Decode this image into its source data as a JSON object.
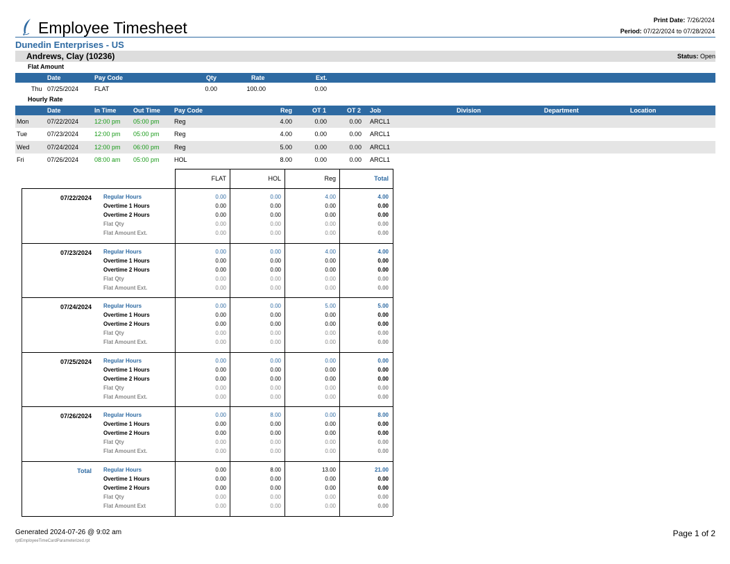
{
  "header": {
    "title": "Employee Timesheet",
    "print_date_label": "Print Date:",
    "print_date_value": "7/26/2024",
    "period_label": "Period:",
    "period_value": "07/22/2024 to 07/28/2024",
    "logo_icon": "feather-icon"
  },
  "company": "Dunedin Enterprises - US",
  "employee": {
    "name": "Andrews, Clay (10236)",
    "status_label": "Status:",
    "status_value": "Open"
  },
  "flat_amount": {
    "title": "Flat Amount",
    "headers": {
      "date": "Date",
      "pay_code": "Pay Code",
      "qty": "Qty",
      "rate": "Rate",
      "ext": "Ext."
    },
    "rows": [
      {
        "day": "Thu",
        "date": "07/25/2024",
        "pay_code": "FLAT",
        "qty": "0.00",
        "rate": "100.00",
        "ext": "0.00"
      }
    ]
  },
  "hourly_rate": {
    "title": "Hourly Rate",
    "headers": {
      "date": "Date",
      "in_time": "In Time",
      "out_time": "Out Time",
      "pay_code": "Pay Code",
      "reg": "Reg",
      "ot1": "OT 1",
      "ot2": "OT 2",
      "job": "Job",
      "division": "Division",
      "department": "Department",
      "location": "Location"
    },
    "rows": [
      {
        "day": "Mon",
        "date": "07/22/2024",
        "in_time": "12:00 pm",
        "out_time": "05:00 pm",
        "pay_code": "Reg",
        "reg": "4.00",
        "ot1": "0.00",
        "ot2": "0.00",
        "job": "ARCL1"
      },
      {
        "day": "Tue",
        "date": "07/23/2024",
        "in_time": "12:00 pm",
        "out_time": "05:00 pm",
        "pay_code": "Reg",
        "reg": "4.00",
        "ot1": "0.00",
        "ot2": "0.00",
        "job": "ARCL1"
      },
      {
        "day": "Wed",
        "date": "07/24/2024",
        "in_time": "12:00 pm",
        "out_time": "06:00 pm",
        "pay_code": "Reg",
        "reg": "5.00",
        "ot1": "0.00",
        "ot2": "0.00",
        "job": "ARCL1"
      },
      {
        "day": "Fri",
        "date": "07/26/2024",
        "in_time": "08:00 am",
        "out_time": "05:00 pm",
        "pay_code": "HOL",
        "reg": "8.00",
        "ot1": "0.00",
        "ot2": "0.00",
        "job": "ARCL1"
      }
    ]
  },
  "summary": {
    "columns": [
      "FLAT",
      "HOL",
      "Reg",
      "Total"
    ],
    "blocks": [
      {
        "label": "07/22/2024",
        "lines": [
          {
            "name": "Regular Hours",
            "values": [
              "0.00",
              "0.00",
              "4.00",
              "4.00"
            ]
          },
          {
            "name": "Overtime 1 Hours",
            "values": [
              "0.00",
              "0.00",
              "0.00",
              "0.00"
            ]
          },
          {
            "name": "Overtime 2 Hours",
            "values": [
              "0.00",
              "0.00",
              "0.00",
              "0.00"
            ]
          },
          {
            "name": "Flat Qty",
            "values": [
              "0.00",
              "0.00",
              "0.00",
              "0.00"
            ]
          },
          {
            "name": "Flat Amount Ext.",
            "values": [
              "0.00",
              "0.00",
              "0.00",
              "0.00"
            ]
          }
        ]
      },
      {
        "label": "07/23/2024",
        "lines": [
          {
            "name": "Regular Hours",
            "values": [
              "0.00",
              "0.00",
              "4.00",
              "4.00"
            ]
          },
          {
            "name": "Overtime 1 Hours",
            "values": [
              "0.00",
              "0.00",
              "0.00",
              "0.00"
            ]
          },
          {
            "name": "Overtime 2 Hours",
            "values": [
              "0.00",
              "0.00",
              "0.00",
              "0.00"
            ]
          },
          {
            "name": "Flat Qty",
            "values": [
              "0.00",
              "0.00",
              "0.00",
              "0.00"
            ]
          },
          {
            "name": "Flat Amount Ext.",
            "values": [
              "0.00",
              "0.00",
              "0.00",
              "0.00"
            ]
          }
        ]
      },
      {
        "label": "07/24/2024",
        "lines": [
          {
            "name": "Regular Hours",
            "values": [
              "0.00",
              "0.00",
              "5.00",
              "5.00"
            ]
          },
          {
            "name": "Overtime 1 Hours",
            "values": [
              "0.00",
              "0.00",
              "0.00",
              "0.00"
            ]
          },
          {
            "name": "Overtime 2 Hours",
            "values": [
              "0.00",
              "0.00",
              "0.00",
              "0.00"
            ]
          },
          {
            "name": "Flat Qty",
            "values": [
              "0.00",
              "0.00",
              "0.00",
              "0.00"
            ]
          },
          {
            "name": "Flat Amount Ext.",
            "values": [
              "0.00",
              "0.00",
              "0.00",
              "0.00"
            ]
          }
        ]
      },
      {
        "label": "07/25/2024",
        "lines": [
          {
            "name": "Regular Hours",
            "values": [
              "0.00",
              "0.00",
              "0.00",
              "0.00"
            ]
          },
          {
            "name": "Overtime 1 Hours",
            "values": [
              "0.00",
              "0.00",
              "0.00",
              "0.00"
            ]
          },
          {
            "name": "Overtime 2 Hours",
            "values": [
              "0.00",
              "0.00",
              "0.00",
              "0.00"
            ]
          },
          {
            "name": "Flat Qty",
            "values": [
              "0.00",
              "0.00",
              "0.00",
              "0.00"
            ]
          },
          {
            "name": "Flat Amount Ext.",
            "values": [
              "0.00",
              "0.00",
              "0.00",
              "0.00"
            ]
          }
        ]
      },
      {
        "label": "07/26/2024",
        "lines": [
          {
            "name": "Regular Hours",
            "values": [
              "0.00",
              "8.00",
              "0.00",
              "8.00"
            ]
          },
          {
            "name": "Overtime 1 Hours",
            "values": [
              "0.00",
              "0.00",
              "0.00",
              "0.00"
            ]
          },
          {
            "name": "Overtime 2 Hours",
            "values": [
              "0.00",
              "0.00",
              "0.00",
              "0.00"
            ]
          },
          {
            "name": "Flat Qty",
            "values": [
              "0.00",
              "0.00",
              "0.00",
              "0.00"
            ]
          },
          {
            "name": "Flat Amount Ext.",
            "values": [
              "0.00",
              "0.00",
              "0.00",
              "0.00"
            ]
          }
        ]
      },
      {
        "label": "Total",
        "lines": [
          {
            "name": "Regular Hours",
            "values": [
              "0.00",
              "8.00",
              "13.00",
              "21.00"
            ]
          },
          {
            "name": "Overtime 1 Hours",
            "values": [
              "0.00",
              "0.00",
              "0.00",
              "0.00"
            ]
          },
          {
            "name": "Overtime 2 Hours",
            "values": [
              "0.00",
              "0.00",
              "0.00",
              "0.00"
            ]
          },
          {
            "name": "Flat Qty",
            "values": [
              "0.00",
              "0.00",
              "0.00",
              "0.00"
            ]
          },
          {
            "name": "Flat Amount Ext",
            "values": [
              "0.00",
              "0.00",
              "0.00",
              "0.00"
            ]
          }
        ]
      }
    ]
  },
  "footer": {
    "generated": "Generated 2024-07-26 @  9:02 am",
    "report_file": "rptEmployeeTimeCardParameterized.rpt",
    "page": "Page 1 of 2"
  },
  "colors": {
    "accent": "#2e6aa2",
    "green": "#1a9b1a",
    "row_shade": "#e5e5e5"
  }
}
